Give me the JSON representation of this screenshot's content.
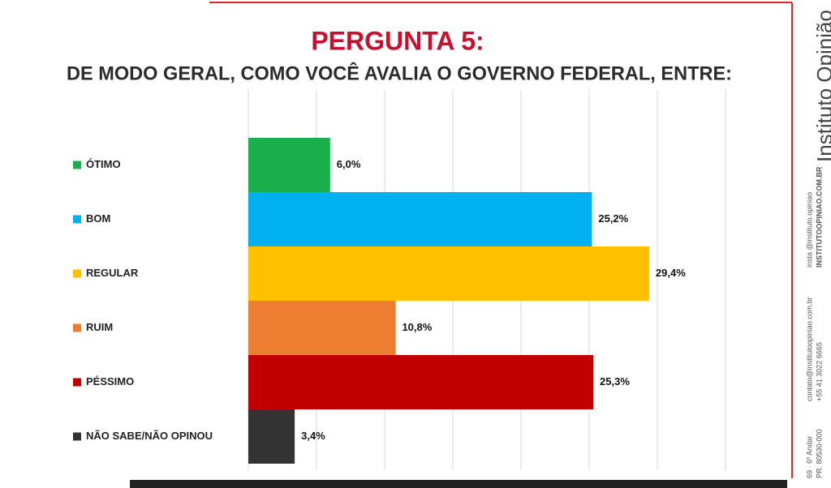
{
  "chart_data": {
    "type": "hbar",
    "title": "PERGUNTA 5:",
    "subtitle": "DE MODO GERAL, COMO VOCÊ AVALIA O GOVERNO FEDERAL, ENTRE:",
    "categories": [
      "ÓTIMO",
      "BOM",
      "REGULAR",
      "RUIM",
      "PÉSSIMO",
      "NÃO SABE/NÃO OPINOU"
    ],
    "values": [
      6.0,
      25.2,
      29.4,
      10.8,
      25.3,
      3.4
    ],
    "value_labels": [
      "6,0%",
      "25,2%",
      "29,4%",
      "10,8%",
      "25,3%",
      "3,4%"
    ],
    "colors": [
      "#1aae4c",
      "#00b0f0",
      "#ffc000",
      "#ed7d31",
      "#c00000",
      "#333333"
    ],
    "xlim": [
      0,
      35
    ],
    "xticks": [
      0,
      5,
      10,
      15,
      20,
      25,
      30,
      35
    ],
    "tick_labels": false,
    "grid": true
  },
  "sidebar": {
    "brand": "Instituto Opinião",
    "lines": [
      "insta @instituto.opiniao",
      "INSTITUTOOPINIAO.COM.BR",
      "contato@institutoopiniao.com.br",
      "+55 41 3022 6665",
      "69 · 6º Andar",
      "PR. 80530-000"
    ]
  }
}
